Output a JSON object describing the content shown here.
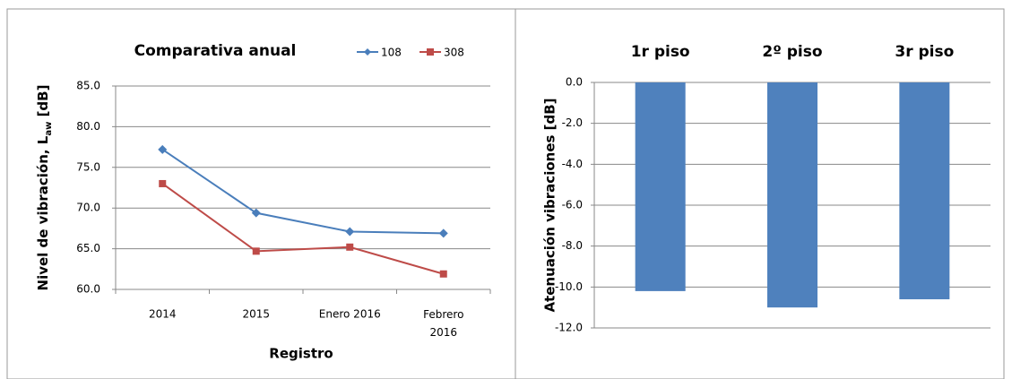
{
  "chart_data": [
    {
      "type": "line",
      "title": "Comparativa anual",
      "ylabel": [
        "Nivel de vibración, L",
        "aw",
        " [dB]"
      ],
      "xlabel": "Registro",
      "categories": [
        "2014",
        "2015",
        "Enero 2016",
        "Febrero 2016"
      ],
      "series": [
        {
          "name": "108",
          "color": "#4a7ebb",
          "marker": "diamond",
          "values": [
            77.2,
            69.4,
            67.1,
            66.9
          ]
        },
        {
          "name": "308",
          "color": "#be4b48",
          "marker": "square",
          "values": [
            73.0,
            64.7,
            65.2,
            61.9
          ]
        }
      ],
      "ylim": [
        60,
        85
      ],
      "yticks": [
        {
          "value": 60,
          "label": "60.0"
        },
        {
          "value": 65,
          "label": "65.0"
        },
        {
          "value": 70,
          "label": "70.0"
        },
        {
          "value": 75,
          "label": "75.0"
        },
        {
          "value": 80,
          "label": "80.0"
        },
        {
          "value": 85,
          "label": "85.0"
        }
      ],
      "grid": true,
      "legend": "top-right"
    },
    {
      "type": "bar",
      "ylabel": "Atenuación vibraciones  [dB]",
      "categories": [
        "1r piso",
        "2º piso",
        "3r piso"
      ],
      "values": [
        -10.2,
        -11.0,
        -10.6
      ],
      "color": "#4f81bd",
      "ylim": [
        -12,
        0
      ],
      "yticks": [
        {
          "value": -12,
          "label": "-12.0"
        },
        {
          "value": -10,
          "label": "-10.0"
        },
        {
          "value": -8,
          "label": "-8.0"
        },
        {
          "value": -6,
          "label": "-6.0"
        },
        {
          "value": -4,
          "label": "-4.0"
        },
        {
          "value": -2,
          "label": "-2.0"
        },
        {
          "value": 0,
          "label": "0.0"
        }
      ],
      "grid": true
    }
  ]
}
